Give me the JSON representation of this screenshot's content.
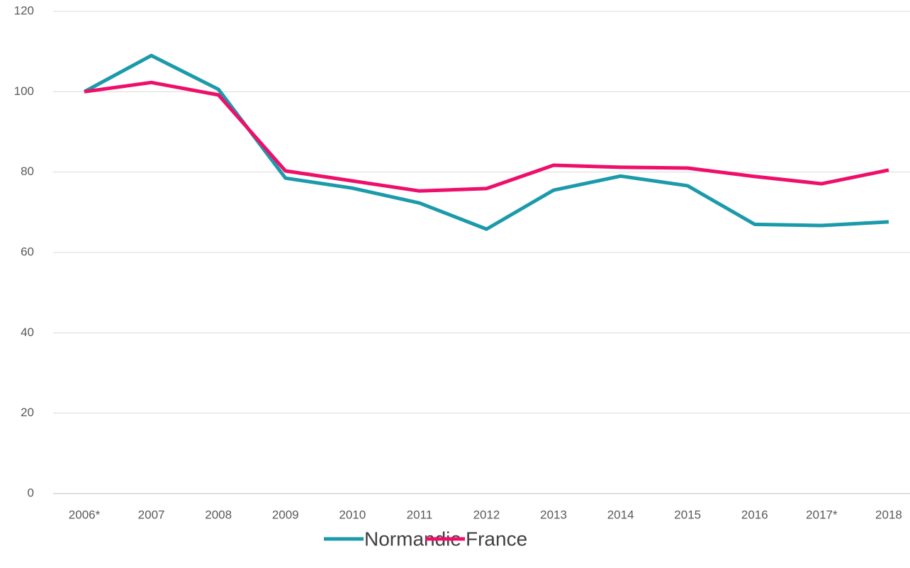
{
  "chart_data": {
    "type": "line",
    "categories": [
      "2006*",
      "2007",
      "2008",
      "2009",
      "2010",
      "2011",
      "2012",
      "2013",
      "2014",
      "2015",
      "2016",
      "2017*",
      "2018"
    ],
    "series": [
      {
        "name": "Normandie",
        "color": "#1b9aaa",
        "values": [
          100,
          109,
          100.6,
          78.5,
          76,
          72.3,
          65.8,
          75.5,
          79,
          76.6,
          67,
          66.7,
          67.6
        ]
      },
      {
        "name": "France",
        "color": "#ee0f6a",
        "values": [
          100,
          102.3,
          99.2,
          80.3,
          77.8,
          75.3,
          75.9,
          81.7,
          81.2,
          81,
          78.9,
          77.1,
          80.5
        ]
      }
    ],
    "ylim": [
      0,
      120
    ],
    "yticks": [
      0,
      20,
      40,
      60,
      80,
      100,
      120
    ],
    "grid": true,
    "legend": "bottom"
  }
}
